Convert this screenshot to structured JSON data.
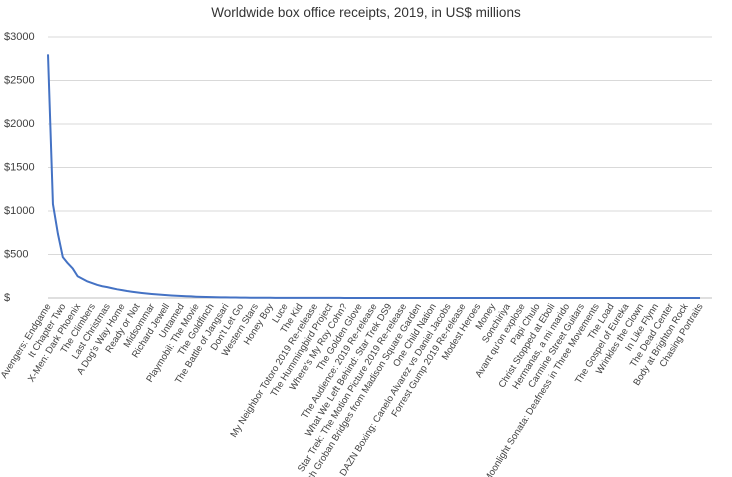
{
  "chart_data": {
    "type": "line",
    "title": "Worldwide box office receipts, 2019, in US$ millions",
    "categories": [
      "Avengers: Endgame",
      null,
      null,
      "It Chapter Two",
      null,
      null,
      "X-Men: Dark Phoenix",
      null,
      null,
      "The Climbers",
      null,
      null,
      "Last Christmas",
      null,
      null,
      "A Dog's Way Home",
      null,
      null,
      "Ready or Not",
      null,
      null,
      "Midsommar",
      null,
      null,
      "Richard Jewell",
      null,
      null,
      "Untamed",
      null,
      null,
      "Playmobil: The Movie",
      null,
      null,
      "The Goldfinch",
      null,
      null,
      "The Battle of Jangsari",
      null,
      null,
      "Don't Let Go",
      null,
      null,
      "Western Stars",
      null,
      null,
      "Honey Boy",
      null,
      null,
      "Luce",
      null,
      null,
      "The Kid",
      null,
      null,
      "My Neighbor Totoro 2019 Re-release",
      null,
      null,
      "The Hummingbird Project",
      null,
      null,
      "Where's My Roy Cohn?",
      null,
      null,
      "The Golden Glove",
      null,
      null,
      "The Audience: 2019 Re-release",
      null,
      null,
      "What We Left Behind: Star Trek DS9",
      null,
      null,
      "Star Trek: The Motion Picture 2019 Re-release",
      null,
      null,
      "Josh Groban Bridges from Madison Square Garden",
      null,
      null,
      "One Child Nation",
      null,
      null,
      "DAZN Boxing: Canelo Alvarez vs Daniel Jacobs",
      null,
      null,
      "Forrest Gump 2019 Re-release",
      null,
      null,
      "Modest Heroes",
      null,
      null,
      "Money",
      null,
      null,
      "Sonchiriya",
      null,
      null,
      "Avant qu'on explose",
      null,
      null,
      "Papi Chulo",
      null,
      null,
      "Christ Stopped at Eboli",
      null,
      null,
      "Hermanas, a mi marido",
      null,
      null,
      "Carmine Street Guitars",
      null,
      null,
      "Moonlight Sonata: Deafness in Three Movements",
      null,
      null,
      "The Load",
      null,
      null,
      "The Gospel of Eureka",
      null,
      null,
      "Wrinkles the Clown",
      null,
      null,
      "In Like Flynn",
      null,
      null,
      "The Dead Center",
      null,
      null,
      "Body at Brighton Rock",
      null,
      null,
      "Chasing Portraits"
    ],
    "series": [
      {
        "name": "Worldwide",
        "color": "#4472c4",
        "values": [
          2800,
          1080,
          740,
          470,
          400,
          340,
          250,
          220,
          190,
          170,
          150,
          135,
          125,
          112,
          100,
          90,
          80,
          72,
          65,
          58,
          52,
          46,
          41,
          37,
          33,
          29,
          26,
          23,
          20,
          18,
          15,
          13,
          11,
          9.5,
          8.5,
          7.5,
          6.5,
          5.5,
          5,
          4.5,
          4,
          3.5,
          3.2,
          2.9,
          2.6,
          2.3,
          2.1,
          1.9,
          1.7,
          1.5,
          1.4,
          1.3,
          1.2,
          1.1,
          1,
          0.95,
          0.9,
          0.85,
          0.8,
          0.76,
          0.72,
          0.68,
          0.64,
          0.6,
          0.57,
          0.54,
          0.51,
          0.48,
          0.45,
          0.43,
          0.41,
          0.39,
          0.37,
          0.35,
          0.33,
          0.31,
          0.3,
          0.29,
          0.28,
          0.27,
          0.26,
          0.25,
          0.24,
          0.23,
          0.22,
          0.21,
          0.2,
          0.19,
          0.18,
          0.17,
          0.16,
          0.15,
          0.145,
          0.14,
          0.135,
          0.13,
          0.125,
          0.12,
          0.115,
          0.11,
          0.105,
          0.1,
          0.095,
          0.09,
          0.085,
          0.08,
          0.075,
          0.07,
          0.065,
          0.06,
          0.057,
          0.054,
          0.051,
          0.048,
          0.045,
          0.042,
          0.04,
          0.038,
          0.036,
          0.034,
          0.032,
          0.03,
          0.028,
          0.026,
          0.024,
          0.022,
          0.02,
          0.018,
          0.016,
          0.014,
          0.012,
          0.01,
          0.008
        ]
      }
    ],
    "ylim": [
      0,
      3000
    ],
    "yticks": [
      {
        "value": 0,
        "label": "$"
      },
      {
        "value": 500,
        "label": "$500"
      },
      {
        "value": 1000,
        "label": "$1000"
      },
      {
        "value": 1500,
        "label": "$1500"
      },
      {
        "value": 2000,
        "label": "$2000"
      },
      {
        "value": 2500,
        "label": "$2500"
      },
      {
        "value": 3000,
        "label": "$3000"
      }
    ],
    "grid": true
  }
}
